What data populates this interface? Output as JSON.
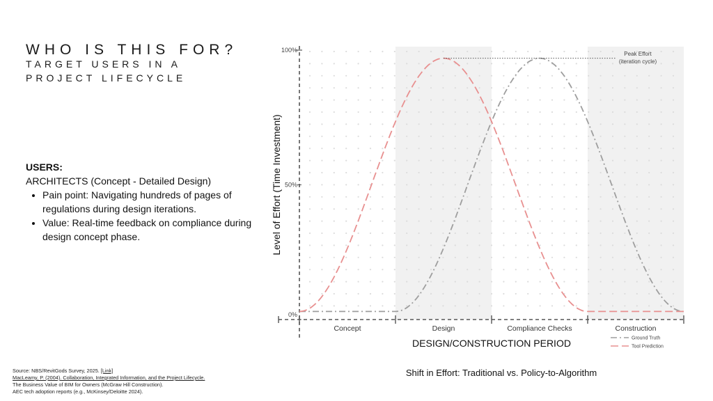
{
  "slide": {
    "title": "WHO IS THIS FOR?",
    "subtitle": "TARGET USERS IN A PROJECT LIFECYCLE",
    "users_heading": "USERS:",
    "users_role": "ARCHITECTS (Concept - Detailed Design)",
    "bullets": [
      "Pain point: Navigating hundreds of pages of regulations during design iterations.",
      "Value: Real-time feedback on compliance during design concept phase."
    ],
    "source_prefix": "Source: NBS/RevitGods Survey, 2025. ",
    "source_link": "[Link]",
    "source_lines": [
      "MacLeamy, P. (2004). Collaboration, Integrated Information, and the Project Lifecycle.",
      "The Business Value of BIM for Owners (McGraw Hill Construction).",
      "AEC tech adoption reports (e.g., McKinsey/Deloitte 2024)."
    ],
    "caption": "Shift in Effort: Traditional vs. Policy-to-Algorithm"
  },
  "chart_data": {
    "type": "line",
    "xlabel": "DESIGN/CONSTRUCTION PERIOD",
    "ylabel": "Level of Effort (Time Investment)",
    "phases": [
      "Concept",
      "Design",
      "Compliance Checks",
      "Construction"
    ],
    "highlighted_phases": [
      "Design",
      "Construction"
    ],
    "y_ticks": [
      "0%",
      "50%",
      "100%"
    ],
    "ylim": [
      0,
      100
    ],
    "xlim": [
      0,
      4
    ],
    "grid": "dotted",
    "annotation": {
      "line1": "Peak Effort",
      "line2": "(iteration cycle)"
    },
    "legend_position": "bottom-right",
    "series": [
      {
        "name": "Ground Truth",
        "color": "#9e9e9e",
        "dash": "dash-dot",
        "peak_x": 2.5,
        "peak_y": 97,
        "start_x": 1.0,
        "end_x": 4.0,
        "baseline_y": 3
      },
      {
        "name": "Tool Prediction",
        "color": "#e89090",
        "dash": "long-dash",
        "peak_x": 1.5,
        "peak_y": 97,
        "start_x": 0.0,
        "end_x": 3.0,
        "baseline_y": 3
      }
    ]
  }
}
